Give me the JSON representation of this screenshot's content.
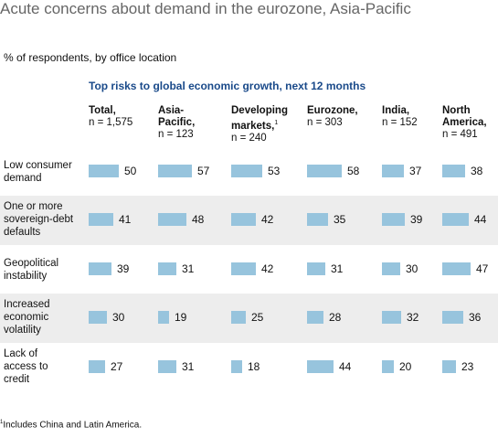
{
  "title": "Acute concerns about demand in the eurozone, Asia-Pacific",
  "subtitle": "% of respondents, by office location",
  "footnote_marker": "1",
  "footnote_text": "Includes China and Latin America.",
  "chart_data": {
    "type": "bar",
    "title": "Top risks to global economic growth, next 12 months",
    "columns": [
      {
        "name_lines": [
          "Total,"
        ],
        "n": "n = 1,575",
        "footnote": ""
      },
      {
        "name_lines": [
          "Asia-",
          "Pacific,"
        ],
        "n": "n = 123",
        "footnote": ""
      },
      {
        "name_lines": [
          "Developing",
          "markets,"
        ],
        "n": "n = 240",
        "footnote": "1"
      },
      {
        "name_lines": [
          "Eurozone,"
        ],
        "n": "n = 303",
        "footnote": ""
      },
      {
        "name_lines": [
          "India,"
        ],
        "n": "n = 152",
        "footnote": ""
      },
      {
        "name_lines": [
          "North",
          "America,"
        ],
        "n": "n = 491",
        "footnote": ""
      }
    ],
    "categories": [
      "Low consumer demand",
      "One or more sovereign-debt defaults",
      "Geopolitical instability",
      "Increased economic volatility",
      "Lack of access to credit"
    ],
    "category_lines": [
      [
        "Low consumer",
        "demand"
      ],
      [
        "One or more",
        "sovereign-debt",
        "defaults"
      ],
      [
        "Geopolitical",
        "instability"
      ],
      [
        "Increased",
        "economic",
        "volatility"
      ],
      [
        "Lack of",
        "access to",
        "credit"
      ]
    ],
    "values": [
      [
        50,
        57,
        53,
        58,
        37,
        38
      ],
      [
        41,
        48,
        42,
        35,
        39,
        44
      ],
      [
        39,
        31,
        42,
        31,
        30,
        47
      ],
      [
        30,
        19,
        25,
        28,
        32,
        36
      ],
      [
        27,
        31,
        18,
        44,
        20,
        23
      ]
    ],
    "bar_color": "#97c4dd",
    "shade_color": "#ededed"
  }
}
